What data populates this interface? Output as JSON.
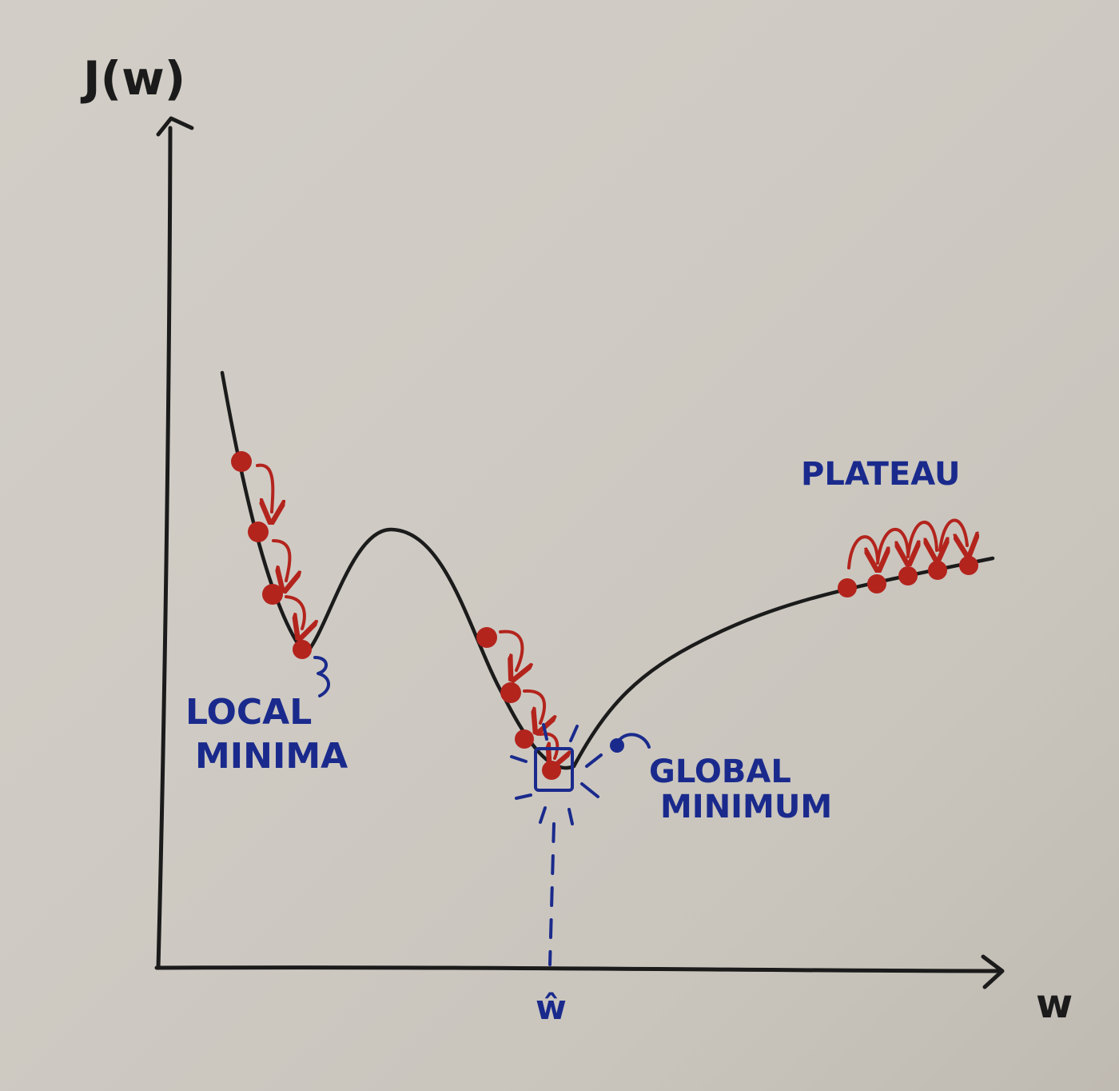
{
  "axes": {
    "y_label": "J(w)",
    "x_label": "w",
    "x_marker": "ŵ"
  },
  "annotations": {
    "local_minima": [
      "LOCAL",
      "MINIMA"
    ],
    "global_minimum": [
      "GLOBAL",
      "MINIMUM"
    ],
    "plateau": "PLATEAU"
  },
  "colors": {
    "curve": "#1b1b1b",
    "steps": "#b3241d",
    "labels": "#1a2a8c"
  },
  "icons": {
    "steps": "red-dot-with-curved-arrow",
    "pointer": "blue-squiggle-arrow",
    "target": "blue-square-with-rays"
  }
}
